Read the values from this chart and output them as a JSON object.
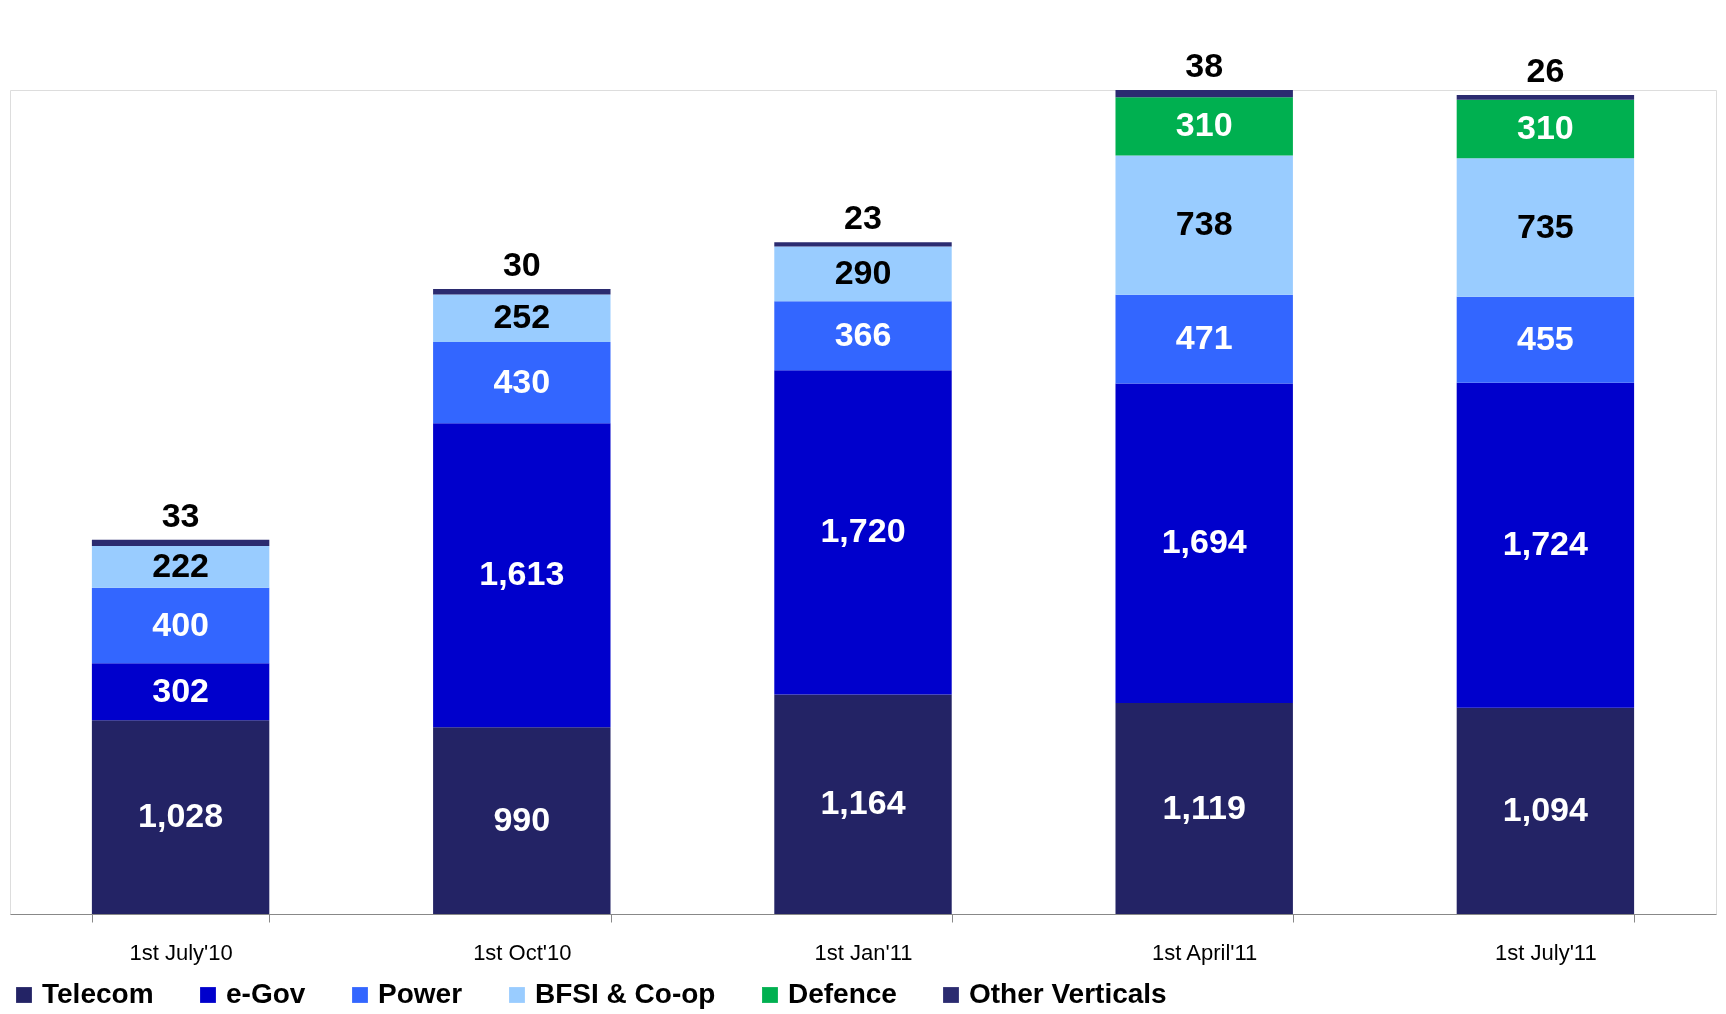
{
  "chart_data": {
    "type": "bar",
    "stacked": true,
    "legend": "bottom",
    "categories": [
      "1st July'10",
      "1st Oct'10",
      "1st Jan'11",
      "1st April'11",
      "1st July'11"
    ],
    "series": [
      {
        "name": "Telecom",
        "color": "#232365",
        "values": [
          1028,
          990,
          1164,
          1119,
          1094
        ],
        "value_labels": [
          "1,028",
          "990",
          "1,164",
          "1,119",
          "1,094"
        ]
      },
      {
        "name": "e-Gov",
        "color": "#0000cc",
        "values": [
          302,
          1613,
          1720,
          1694,
          1724
        ],
        "value_labels": [
          "302",
          "1,613",
          "1,720",
          "1,694",
          "1,724"
        ]
      },
      {
        "name": "Power",
        "color": "#3366ff",
        "values": [
          400,
          430,
          366,
          471,
          455
        ],
        "value_labels": [
          "400",
          "430",
          "366",
          "471",
          "455"
        ]
      },
      {
        "name": "BFSI & Co-op",
        "color": "#99ccff",
        "values": [
          222,
          252,
          290,
          738,
          735
        ],
        "value_labels": [
          "222",
          "252",
          "290",
          "738",
          "735"
        ]
      },
      {
        "name": "Defence",
        "color": "#00b050",
        "values": [
          null,
          null,
          null,
          310,
          310
        ],
        "value_labels": [
          null,
          null,
          null,
          "310",
          "310"
        ]
      },
      {
        "name": "Other Verticals",
        "color": "#2b2b70",
        "values": [
          33,
          30,
          23,
          38,
          26
        ],
        "value_labels": [
          "33",
          "30",
          "23",
          "38",
          "26"
        ]
      }
    ]
  }
}
